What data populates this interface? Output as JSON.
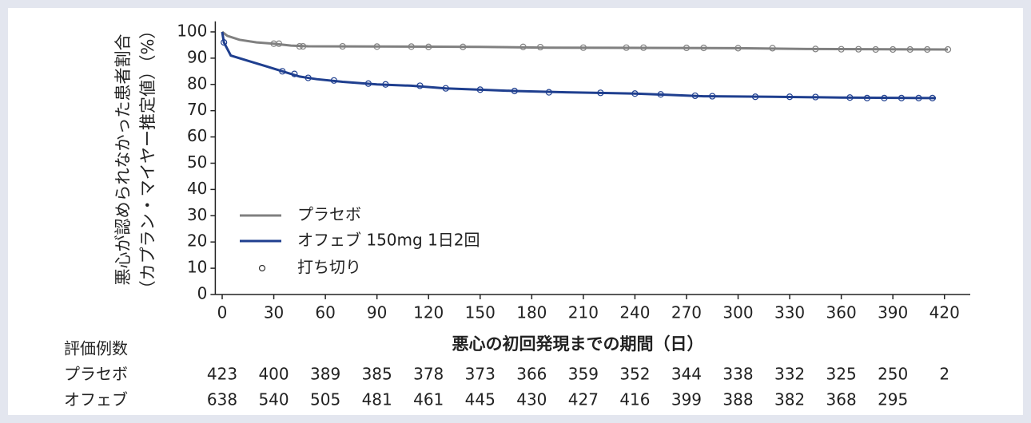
{
  "chart_data": {
    "type": "line",
    "y_label_lines": [
      "悪心が認められなかった患者割合",
      "（カプラン・マイヤー推定値）（%）"
    ],
    "x_label": "悪心の初回発現までの期間（日）",
    "xlim": [
      -4,
      435
    ],
    "ylim": [
      0,
      104
    ],
    "xticks": [
      0,
      30,
      60,
      90,
      120,
      150,
      180,
      210,
      240,
      270,
      300,
      330,
      360,
      390,
      420
    ],
    "yticks": [
      0,
      10,
      20,
      30,
      40,
      50,
      60,
      70,
      80,
      90,
      100
    ],
    "series": [
      {
        "name": "プラセボ",
        "color": "#808080",
        "x": [
          0,
          3,
          10,
          20,
          30,
          40,
          50,
          150,
          190,
          300,
          340,
          422
        ],
        "values": [
          100,
          98.5,
          97,
          96,
          95.5,
          94.8,
          94.5,
          94.3,
          94,
          93.8,
          93.5,
          93.3
        ],
        "censored_x": [
          30,
          33,
          45,
          47,
          70,
          90,
          110,
          120,
          140,
          175,
          185,
          210,
          235,
          245,
          270,
          280,
          300,
          320,
          345,
          360,
          370,
          380,
          390,
          400,
          410,
          422
        ],
        "censored_y": [
          95.5,
          95.5,
          94.5,
          94.5,
          94.5,
          94.4,
          94.4,
          94.3,
          94.3,
          94.3,
          94.2,
          94,
          94,
          94,
          93.9,
          93.9,
          93.8,
          93.8,
          93.5,
          93.4,
          93.4,
          93.3,
          93.3,
          93.3,
          93.3,
          93.3
        ]
      },
      {
        "name": "オフェブ 150mg 1日2回",
        "color": "#1f3f8f",
        "x": [
          0,
          1,
          5,
          15,
          25,
          35,
          45,
          55,
          70,
          90,
          110,
          130,
          150,
          170,
          200,
          240,
          260,
          280,
          320,
          360,
          415
        ],
        "values": [
          100,
          96,
          91,
          89,
          87,
          85,
          83,
          82,
          81,
          80,
          79.5,
          78.5,
          78,
          77.5,
          77,
          76.5,
          76,
          75.5,
          75.3,
          75,
          74.8
        ],
        "censored_x": [
          1,
          35,
          42,
          50,
          65,
          85,
          95,
          115,
          130,
          150,
          170,
          190,
          220,
          240,
          255,
          275,
          285,
          310,
          330,
          345,
          365,
          375,
          385,
          395,
          405,
          413
        ],
        "censored_y": [
          96,
          85,
          84,
          82.5,
          81.5,
          80.3,
          80,
          79.5,
          78.5,
          78,
          77.5,
          77,
          76.8,
          76.5,
          76.2,
          75.7,
          75.5,
          75.3,
          75.3,
          75.2,
          75,
          74.8,
          74.8,
          74.8,
          74.8,
          74.8
        ]
      }
    ],
    "censor_label": "打ち切り",
    "risk_table": {
      "title": "評価例数",
      "rows": [
        {
          "name": "プラセボ",
          "values": [
            423,
            400,
            389,
            385,
            378,
            373,
            366,
            359,
            352,
            344,
            338,
            332,
            325,
            250,
            2
          ]
        },
        {
          "name": "オフェブ",
          "values": [
            638,
            540,
            505,
            481,
            461,
            445,
            430,
            427,
            416,
            399,
            388,
            382,
            368,
            295,
            null
          ]
        }
      ]
    }
  }
}
